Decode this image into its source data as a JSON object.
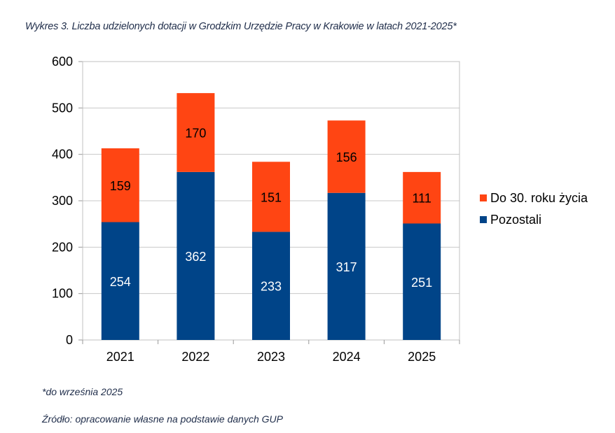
{
  "chart_data": {
    "type": "bar",
    "stacked": true,
    "title": "Wykres 3. Liczba udzielonych dotacji w Grodzkim Urzędzie Pracy w Krakowie w latach 2021-2025*",
    "categories": [
      "2021",
      "2022",
      "2023",
      "2024",
      "2025"
    ],
    "series": [
      {
        "name": "Pozostali",
        "values": [
          254,
          362,
          233,
          317,
          251
        ],
        "color": "#004488"
      },
      {
        "name": "Do 30. roku życia",
        "values": [
          159,
          170,
          151,
          156,
          111
        ],
        "color": "#FF4513"
      }
    ],
    "ylim": [
      0,
      600
    ],
    "yticks": [
      0,
      100,
      200,
      300,
      400,
      500,
      600
    ],
    "grid": true,
    "legend": "right",
    "xlabel": "",
    "ylabel": ""
  },
  "footnote": "*do września 2025",
  "source": "Źródło: opracowanie własne na podstawie danych GUP"
}
